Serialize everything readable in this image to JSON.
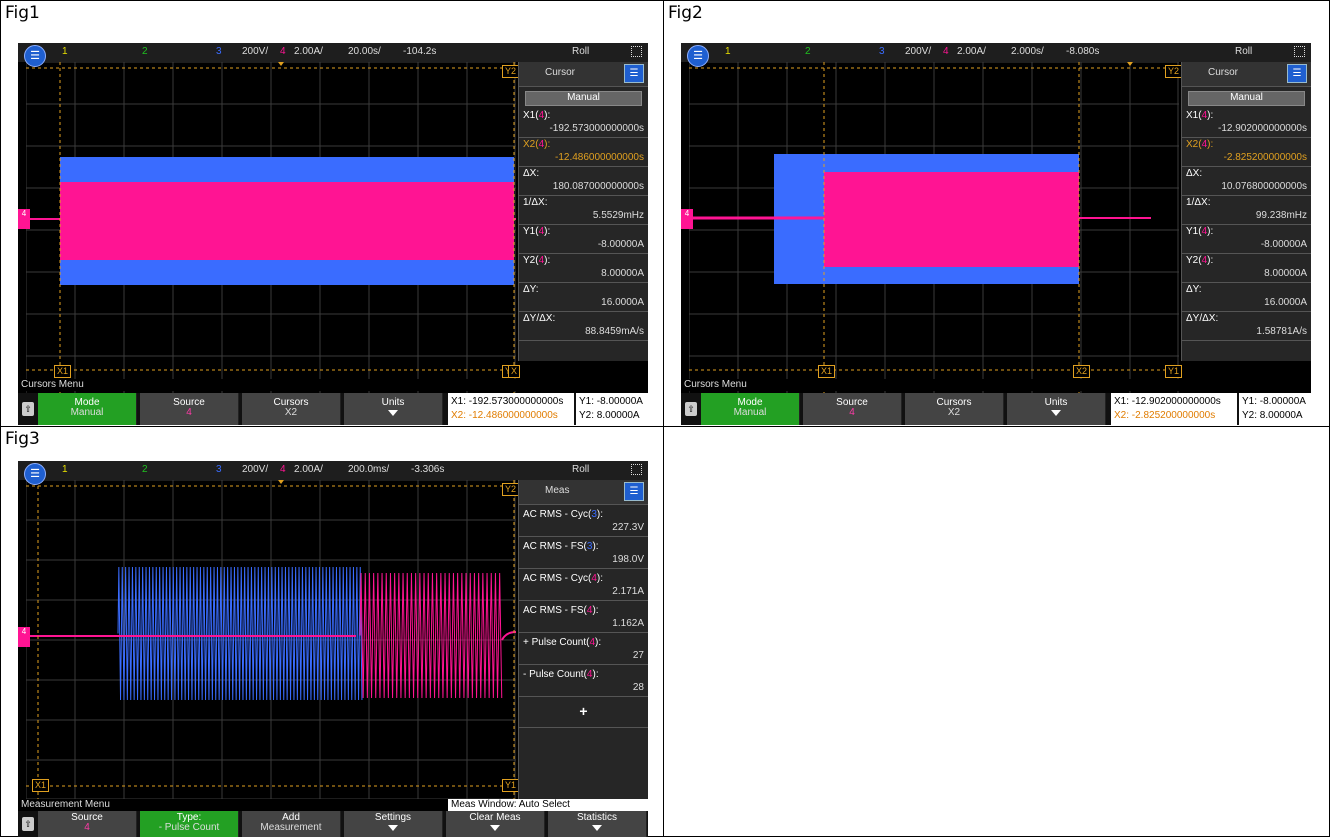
{
  "figures": [
    {
      "label": "Fig1",
      "topbar": {
        "ch1": "1",
        "ch2": "2",
        "ch3": "3",
        "ch3_scale": "200V/",
        "ch4": "4",
        "ch4_scale": "2.00A/",
        "timebase": "20.00s/",
        "delay": "-104.2s",
        "mode": "Roll"
      },
      "side_title": "Cursor",
      "side_mode": "Manual",
      "readouts": [
        {
          "label_pre": "X1(",
          "ch": "4",
          "label_post": "):",
          "value": "-192.573000000000s",
          "orange": false
        },
        {
          "label_pre": "X2(",
          "ch": "4",
          "label_post": "):",
          "value": "-12.486000000000s",
          "orange": true
        },
        {
          "label_pre": "ΔX:",
          "ch": "",
          "label_post": "",
          "value": "180.087000000000s",
          "orange": false
        },
        {
          "label_pre": "1/ΔX:",
          "ch": "",
          "label_post": "",
          "value": "5.5529mHz",
          "orange": false
        },
        {
          "label_pre": "Y1(",
          "ch": "4",
          "label_post": "):",
          "value": "-8.00000A",
          "orange": false
        },
        {
          "label_pre": "Y2(",
          "ch": "4",
          "label_post": "):",
          "value": "8.00000A",
          "orange": false
        },
        {
          "label_pre": "ΔY:",
          "ch": "",
          "label_post": "",
          "value": "16.0000A",
          "orange": false
        },
        {
          "label_pre": "ΔY/ΔX:",
          "ch": "",
          "label_post": "",
          "value": "88.8459mA/s",
          "orange": false
        }
      ],
      "menu_title": "Cursors Menu",
      "softkeys": [
        {
          "l1": "Mode",
          "l2": "Manual",
          "pink": false,
          "arrow": false
        },
        {
          "l1": "Source",
          "l2": "4",
          "pink": true,
          "arrow": false
        },
        {
          "l1": "Cursors",
          "l2": "X2",
          "pink": false,
          "arrow": false
        },
        {
          "l1": "Units",
          "l2": "",
          "pink": false,
          "arrow": true
        }
      ],
      "cursor_info": {
        "x1": "X1:  -192.573000000000s",
        "x2": "X2:  -12.486000000000s",
        "y1": "Y1: -8.00000A",
        "y2": "Y2: 8.00000A"
      },
      "markers": {
        "y2": "Y2",
        "y1": "Y1",
        "x1": "X1",
        "x2": "X",
        "ch4": "4"
      }
    },
    {
      "label": "Fig2",
      "topbar": {
        "ch1": "1",
        "ch2": "2",
        "ch3": "3",
        "ch3_scale": "200V/",
        "ch4": "4",
        "ch4_scale": "2.00A/",
        "timebase": "2.000s/",
        "delay": "-8.080s",
        "mode": "Roll"
      },
      "side_title": "Cursor",
      "side_mode": "Manual",
      "readouts": [
        {
          "label_pre": "X1(",
          "ch": "4",
          "label_post": "):",
          "value": "-12.902000000000s",
          "orange": false
        },
        {
          "label_pre": "X2(",
          "ch": "4",
          "label_post": "):",
          "value": "-2.825200000000s",
          "orange": true
        },
        {
          "label_pre": "ΔX:",
          "ch": "",
          "label_post": "",
          "value": "10.076800000000s",
          "orange": false
        },
        {
          "label_pre": "1/ΔX:",
          "ch": "",
          "label_post": "",
          "value": "99.238mHz",
          "orange": false
        },
        {
          "label_pre": "Y1(",
          "ch": "4",
          "label_post": "):",
          "value": "-8.00000A",
          "orange": false
        },
        {
          "label_pre": "Y2(",
          "ch": "4",
          "label_post": "):",
          "value": "8.00000A",
          "orange": false
        },
        {
          "label_pre": "ΔY:",
          "ch": "",
          "label_post": "",
          "value": "16.0000A",
          "orange": false
        },
        {
          "label_pre": "ΔY/ΔX:",
          "ch": "",
          "label_post": "",
          "value": "1.58781A/s",
          "orange": false
        }
      ],
      "menu_title": "Cursors Menu",
      "softkeys": [
        {
          "l1": "Mode",
          "l2": "Manual",
          "pink": false,
          "arrow": false
        },
        {
          "l1": "Source",
          "l2": "4",
          "pink": true,
          "arrow": false
        },
        {
          "l1": "Cursors",
          "l2": "X2",
          "pink": false,
          "arrow": false
        },
        {
          "l1": "Units",
          "l2": "",
          "pink": false,
          "arrow": true
        }
      ],
      "cursor_info": {
        "x1": "X1:  -12.902000000000s",
        "x2": "X2:  -2.825200000000s",
        "y1": "Y1: -8.00000A",
        "y2": "Y2: 8.00000A"
      },
      "markers": {
        "y2": "Y2",
        "y1": "Y1",
        "x1": "X1",
        "x2": "X2",
        "ch4": "4"
      }
    },
    {
      "label": "Fig3",
      "topbar": {
        "ch1": "1",
        "ch2": "2",
        "ch3": "3",
        "ch3_scale": "200V/",
        "ch4": "4",
        "ch4_scale": "2.00A/",
        "timebase": "200.0ms/",
        "delay": "-3.306s",
        "mode": "Roll"
      },
      "side_title": "Meas",
      "meas": [
        {
          "label_pre": "AC RMS - Cyc(",
          "ch": "3",
          "value": "227.3V"
        },
        {
          "label_pre": "AC RMS - FS(",
          "ch": "3",
          "value": "198.0V"
        },
        {
          "label_pre": "AC RMS - Cyc(",
          "ch": "4",
          "value": "2.171A"
        },
        {
          "label_pre": "AC RMS - FS(",
          "ch": "4",
          "value": "1.162A"
        },
        {
          "label_pre": "+ Pulse Count(",
          "ch": "4",
          "value": "27"
        },
        {
          "label_pre": "- Pulse Count(",
          "ch": "4",
          "value": "28"
        }
      ],
      "add_symbol": "+",
      "menu_title": "Measurement Menu",
      "meas_window": "Meas Window: Auto Select",
      "softkeys": [
        {
          "l1": "Source",
          "l2": "4",
          "pink": true,
          "arrow": false
        },
        {
          "l1": "Type:",
          "l2": "- Pulse Count",
          "pink": false,
          "arrow": false
        },
        {
          "l1": "Add",
          "l2": "Measurement",
          "pink": false,
          "arrow": false
        },
        {
          "l1": "Settings",
          "l2": "",
          "pink": false,
          "arrow": true
        },
        {
          "l1": "Clear Meas",
          "l2": "",
          "pink": false,
          "arrow": true
        },
        {
          "l1": "Statistics",
          "l2": "",
          "pink": false,
          "arrow": true
        }
      ],
      "markers": {
        "y2": "Y2",
        "y1": "Y1",
        "x1": "X1",
        "ch4": "4"
      }
    }
  ],
  "colors": {
    "ch1": "#e8e000",
    "ch2": "#1fc01f",
    "ch3": "#3a6cff",
    "ch4": "#ff1493",
    "cursor": "#e0a020"
  }
}
